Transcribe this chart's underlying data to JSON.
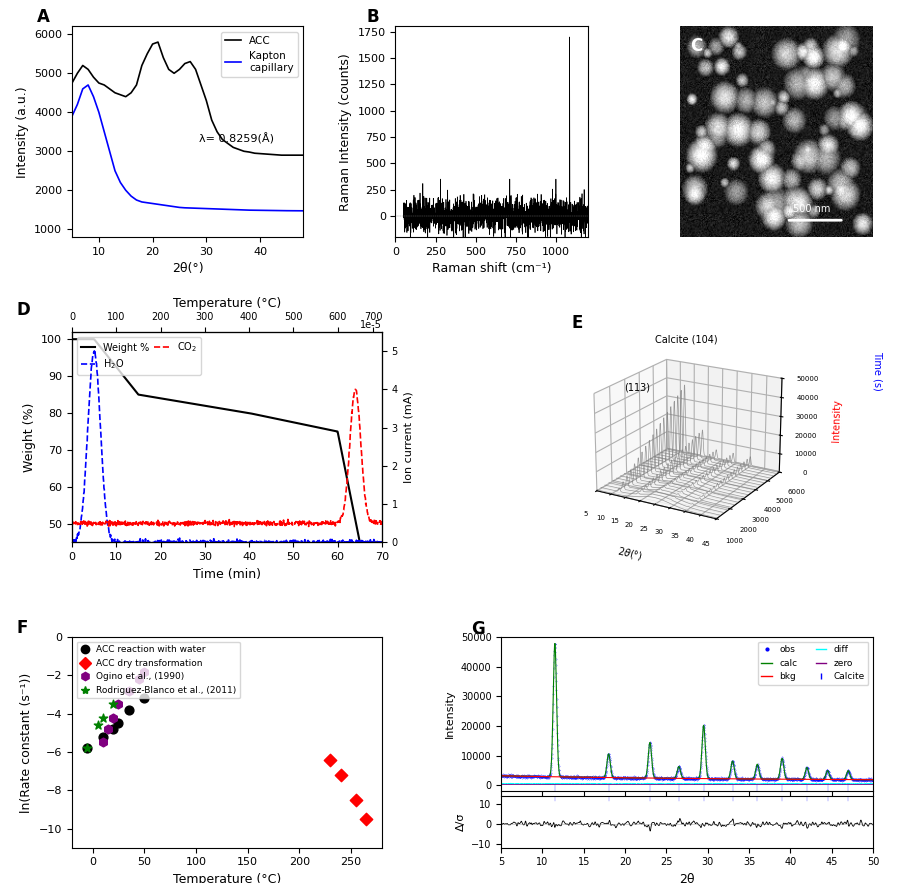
{
  "panel_A": {
    "label": "A",
    "xlabel": "2θ(°)",
    "ylabel": "Intensity (a.u.)",
    "xlim": [
      5,
      48
    ],
    "ylim": [
      800,
      6200
    ],
    "lambda_text": "λ= 0.8259(Å)",
    "legend": [
      "ACC",
      "Kapton\ncapillary"
    ],
    "legend_colors": [
      "black",
      "blue"
    ],
    "acc_x": [
      5,
      6,
      7,
      8,
      9,
      10,
      11,
      12,
      13,
      14,
      15,
      16,
      17,
      18,
      19,
      20,
      21,
      22,
      23,
      24,
      25,
      26,
      27,
      28,
      29,
      30,
      31,
      32,
      33,
      34,
      35,
      36,
      37,
      38,
      39,
      40,
      41,
      42,
      43,
      44,
      45,
      46,
      47,
      48
    ],
    "acc_y": [
      4750,
      5000,
      5200,
      5100,
      4900,
      4750,
      4700,
      4600,
      4500,
      4450,
      4400,
      4500,
      4700,
      5200,
      5500,
      5750,
      5800,
      5400,
      5100,
      5000,
      5100,
      5250,
      5300,
      5100,
      4700,
      4300,
      3800,
      3500,
      3300,
      3200,
      3100,
      3050,
      3000,
      2980,
      2950,
      2940,
      2930,
      2920,
      2910,
      2900,
      2900,
      2900,
      2900,
      2900
    ],
    "kap_x": [
      5,
      6,
      7,
      8,
      9,
      10,
      11,
      12,
      13,
      14,
      15,
      16,
      17,
      18,
      19,
      20,
      21,
      22,
      23,
      24,
      25,
      26,
      27,
      28,
      29,
      30,
      31,
      32,
      33,
      34,
      35,
      36,
      37,
      38,
      39,
      40,
      41,
      42,
      43,
      44,
      45,
      46,
      47,
      48
    ],
    "kap_y": [
      3900,
      4200,
      4600,
      4700,
      4400,
      4000,
      3500,
      3000,
      2500,
      2200,
      2000,
      1850,
      1750,
      1700,
      1680,
      1660,
      1640,
      1620,
      1600,
      1580,
      1560,
      1550,
      1545,
      1540,
      1535,
      1530,
      1525,
      1520,
      1515,
      1510,
      1505,
      1500,
      1495,
      1490,
      1488,
      1486,
      1484,
      1482,
      1480,
      1478,
      1476,
      1475,
      1474,
      1473
    ]
  },
  "panel_B": {
    "label": "B",
    "xlabel": "Raman shift (cm⁻¹)",
    "ylabel": "Raman Intensity (counts)",
    "xlim": [
      0,
      1200
    ],
    "ylim": [
      -200,
      1800
    ]
  },
  "panel_D": {
    "label": "D",
    "xlabel": "Time (min)",
    "ylabel_left": "Weight (%)",
    "ylabel_right": "Ion current (mA)",
    "xlabel_top": "Temperature (°C)",
    "xlim": [
      0,
      70
    ],
    "ylim_left": [
      45,
      102
    ],
    "ylim_right": [
      0,
      5.5
    ],
    "xtop_ticks": [
      0,
      100,
      200,
      300,
      400,
      500,
      600,
      700
    ],
    "temp_factor": 10,
    "note": "1e-5"
  },
  "panel_E": {
    "label": "E",
    "xlabel": "2θ(°)",
    "ylabel_left": "Intensity",
    "ylabel_right": "Time (s)",
    "xlim": [
      5,
      45
    ],
    "note_calcite": "Calcite (104)",
    "note_113": "(113)"
  },
  "panel_F": {
    "label": "F",
    "xlabel": "Temperature (°C)",
    "ylabel": "ln(Rate constant (s⁻¹))",
    "xlim": [
      -20,
      280
    ],
    "ylim": [
      -11,
      0
    ],
    "series": [
      {
        "label": "ACC reaction with water",
        "color": "black",
        "marker": "o",
        "x": [
          -5,
          10,
          20,
          25,
          35,
          50
        ],
        "y": [
          -5.8,
          -5.2,
          -4.8,
          -4.5,
          -3.8,
          -3.2
        ]
      },
      {
        "label": "ACC dry transformation",
        "color": "red",
        "marker": "D",
        "x": [
          230,
          240,
          255,
          265
        ],
        "y": [
          -6.4,
          -7.2,
          -8.5,
          -9.5
        ]
      },
      {
        "label": "Ogino et al., (1990)",
        "color": "purple",
        "marker": "h",
        "x": [
          10,
          15,
          20,
          25,
          35,
          45,
          50
        ],
        "y": [
          -5.5,
          -4.8,
          -4.2,
          -3.5,
          -2.8,
          -2.2,
          -1.8
        ]
      },
      {
        "label": "Rodriguez-Blanco et al., (2011)",
        "color": "green",
        "marker": "*",
        "x": [
          -5,
          5,
          10,
          20
        ],
        "y": [
          -5.8,
          -4.6,
          -4.2,
          -3.5
        ]
      }
    ]
  },
  "panel_G": {
    "label": "G",
    "xlabel": "2θ",
    "ylabel_top": "Intensity",
    "ylabel_bot": "Δ/σ",
    "xlim": [
      5,
      50
    ],
    "legend": [
      "obs",
      "calc",
      "bkg",
      "diff",
      "zero",
      "Calcite"
    ],
    "legend_colors": [
      "blue",
      "green",
      "red",
      "cyan",
      "purple",
      "blue"
    ]
  }
}
